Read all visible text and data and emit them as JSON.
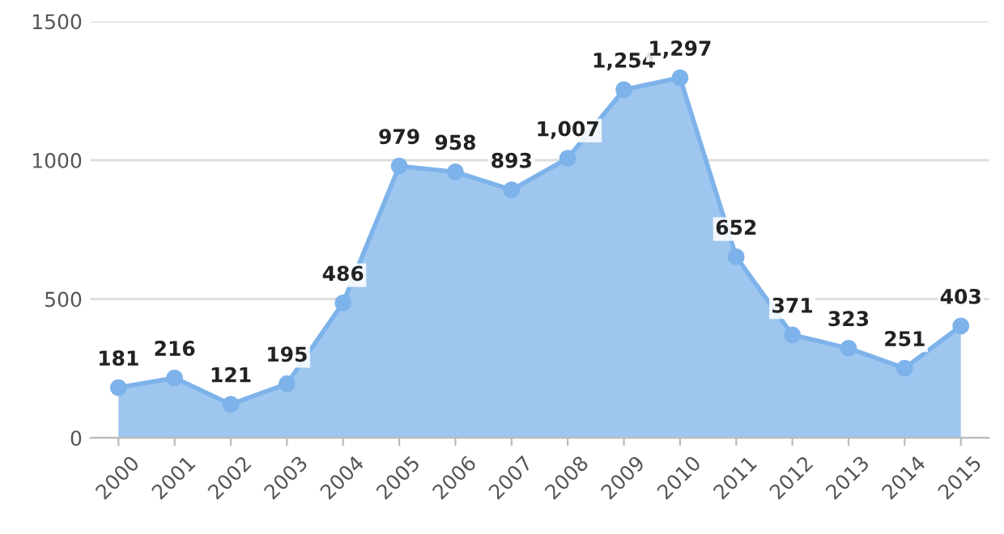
{
  "chart_data": {
    "type": "area",
    "categories": [
      "2000",
      "2001",
      "2002",
      "2003",
      "2004",
      "2005",
      "2006",
      "2007",
      "2008",
      "2009",
      "2010",
      "2011",
      "2012",
      "2013",
      "2014",
      "2015"
    ],
    "series": [
      {
        "color": "#7db3ea",
        "values": [
          181,
          216,
          121,
          195,
          486,
          979,
          958,
          893,
          1007,
          1254,
          1297,
          652,
          371,
          323,
          251,
          403
        ],
        "value_labels": [
          "181",
          "216",
          "121",
          "195",
          "486",
          "979",
          "958",
          "893",
          "1,007",
          "1,254",
          "1,297",
          "652",
          "371",
          "323",
          "251",
          "403"
        ]
      }
    ],
    "ylim": [
      0,
      1500
    ],
    "yticks": [
      0,
      500,
      1000,
      1500
    ],
    "grid": "y",
    "marker": "circle",
    "legend": false
  }
}
